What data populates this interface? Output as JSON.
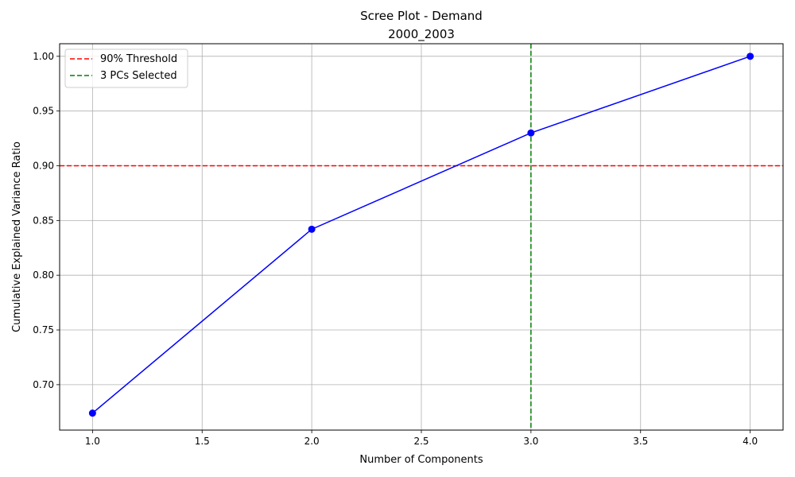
{
  "chart_data": {
    "type": "line",
    "title_line1": "Scree Plot - Demand",
    "title_line2": "2000_2003",
    "xlabel": "Number of Components",
    "ylabel": "Cumulative Explained Variance Ratio",
    "xlim": [
      0.85,
      4.15
    ],
    "ylim": [
      0.6585,
      1.0115
    ],
    "xticks": [
      1.0,
      1.5,
      2.0,
      2.5,
      3.0,
      3.5,
      4.0
    ],
    "xtick_labels": [
      "1.0",
      "1.5",
      "2.0",
      "2.5",
      "3.0",
      "3.5",
      "4.0"
    ],
    "yticks": [
      0.7,
      0.75,
      0.8,
      0.85,
      0.9,
      0.95,
      1.0
    ],
    "ytick_labels": [
      "0.70",
      "0.75",
      "0.80",
      "0.85",
      "0.90",
      "0.95",
      "1.00"
    ],
    "grid": true,
    "legend_position": "top-left",
    "series": [
      {
        "x": [
          1,
          2,
          3,
          4
        ],
        "y": [
          0.674,
          0.842,
          0.93,
          1.0
        ],
        "color": "#0000ff",
        "marker": "circle"
      }
    ],
    "reference_lines": [
      {
        "orientation": "horizontal",
        "value": 0.9,
        "color": "#ff0000",
        "style": "dashed",
        "label": "90% Threshold"
      },
      {
        "orientation": "vertical",
        "value": 3,
        "color": "#008000",
        "style": "dashed",
        "label": "3 PCs Selected"
      }
    ]
  }
}
